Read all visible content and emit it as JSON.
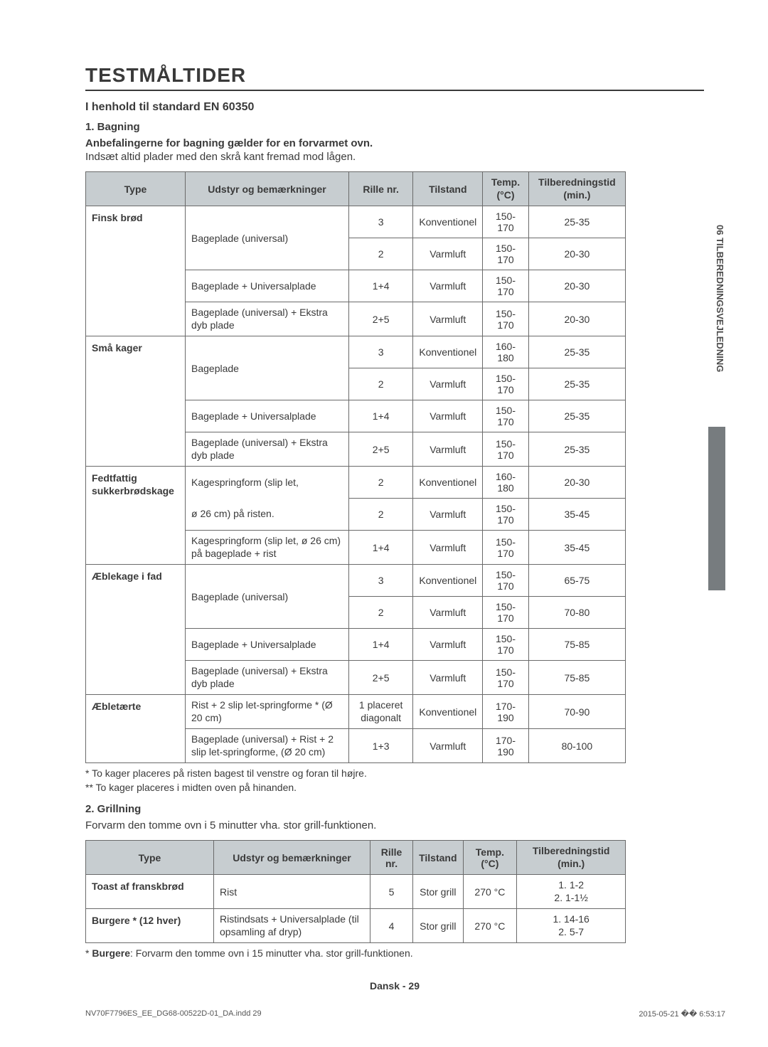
{
  "title": "TESTMÅLTIDER",
  "std_line": "I henhold til standard EN 60350",
  "s1_num": "1. Bagning",
  "s1_heading": "Anbefalingerne for bagning gælder for en forvarmet ovn.",
  "s1_body": "Indsæt altid plader med den skrå kant fremad mod lågen.",
  "t1_headers": {
    "c1": "Type",
    "c2": "Udstyr og bemærkninger",
    "c3": "Rille nr.",
    "c4": "Tilstand",
    "c5": "Temp. (°C)",
    "c6": "Tilberedningstid (min.)"
  },
  "t1": {
    "r1_type": "Finsk brød",
    "r1_equip": "Bageplade (universal)",
    "r1_shelf": "3",
    "r1_mode": "Konventionel",
    "r1_temp": "150-170",
    "r1_time": "25-35",
    "r2_shelf": "2",
    "r2_mode": "Varmluft",
    "r2_temp": "150-170",
    "r2_time": "20-30",
    "r3_equip": "Bageplade + Universalplade",
    "r3_shelf": "1+4",
    "r3_mode": "Varmluft",
    "r3_temp": "150-170",
    "r3_time": "20-30",
    "r4_equip": "Bageplade (universal) + Ekstra dyb plade",
    "r4_shelf": "2+5",
    "r4_mode": "Varmluft",
    "r4_temp": "150-170",
    "r4_time": "20-30",
    "r5_type": "Små kager",
    "r5_equip": "Bageplade",
    "r5_shelf": "3",
    "r5_mode": "Konventionel",
    "r5_temp": "160-180",
    "r5_time": "25-35",
    "r6_shelf": "2",
    "r6_mode": "Varmluft",
    "r6_temp": "150-170",
    "r6_time": "25-35",
    "r7_equip": "Bageplade + Universalplade",
    "r7_shelf": "1+4",
    "r7_mode": "Varmluft",
    "r7_temp": "150-170",
    "r7_time": "25-35",
    "r8_equip": "Bageplade (universal) + Ekstra dyb plade",
    "r8_shelf": "2+5",
    "r8_mode": "Varmluft",
    "r8_temp": "150-170",
    "r8_time": "25-35",
    "r9_type": "Fedtfattig sukkerbrødskage",
    "r9_equip1": "Kagespringform (slip let,",
    "r9_equip2": "ø 26 cm) på risten.",
    "r9_shelf": "2",
    "r9_mode": "Konventionel",
    "r9_temp": "160-180",
    "r9_time": "20-30",
    "r10_shelf": "2",
    "r10_mode": "Varmluft",
    "r10_temp": "150-170",
    "r10_time": "35-45",
    "r11_equip": "Kagespringform (slip let, ø 26 cm) på bageplade + rist",
    "r11_shelf": "1+4",
    "r11_mode": "Varmluft",
    "r11_temp": "150-170",
    "r11_time": "35-45",
    "r12_type": "Æblekage i fad",
    "r12_equip": "Bageplade (universal)",
    "r12_shelf": "3",
    "r12_mode": "Konventionel",
    "r12_temp": "150-170",
    "r12_time": "65-75",
    "r13_shelf": "2",
    "r13_mode": "Varmluft",
    "r13_temp": "150-170",
    "r13_time": "70-80",
    "r14_equip": "Bageplade + Universalplade",
    "r14_shelf": "1+4",
    "r14_mode": "Varmluft",
    "r14_temp": "150-170",
    "r14_time": "75-85",
    "r15_equip": "Bageplade (universal) + Ekstra dyb plade",
    "r15_shelf": "2+5",
    "r15_mode": "Varmluft",
    "r15_temp": "150-170",
    "r15_time": "75-85",
    "r16_type": "Æbletærte",
    "r16_equip": "Rist + 2 slip let-springforme * (Ø 20 cm)",
    "r16_shelf": "1 placeret diagonalt",
    "r16_mode": "Konventionel",
    "r16_temp": "170-190",
    "r16_time": "70-90",
    "r17_equip": "Bageplade (universal) + Rist + 2 slip let-springforme, (Ø 20 cm)",
    "r17_shelf": "1+3",
    "r17_mode": "Varmluft",
    "r17_temp": "170-190",
    "r17_time": "80-100"
  },
  "note1": "* To kager placeres på risten bagest til venstre og foran til højre.",
  "note2": "** To kager placeres i midten oven på hinanden.",
  "s2_num": "2. Grillning",
  "s2_body": "Forvarm den tomme ovn i 5 minutter vha. stor grill-funktionen.",
  "t2_headers": {
    "c1": "Type",
    "c2": "Udstyr og bemærkninger",
    "c3": "Rille nr.",
    "c4": "Tilstand",
    "c5": "Temp. (°C)",
    "c6": "Tilberedningstid (min.)"
  },
  "t2": {
    "r1_type": "Toast af franskbrød",
    "r1_equip": "Rist",
    "r1_shelf": "5",
    "r1_mode": "Stor grill",
    "r1_temp": "270 °C",
    "r1_time1": "1. 1-2",
    "r1_time2": "2. 1-1½",
    "r2_type": "Burgere * (12 hver)",
    "r2_equip": "Ristindsats + Universalplade (til opsamling af dryp)",
    "r2_shelf": "4",
    "r2_mode": "Stor grill",
    "r2_temp": "270 °C",
    "r2_time1": "1. 14-16",
    "r2_time2": "2. 5-7"
  },
  "burger_note_pre": "* ",
  "burger_note_bold": "Burgere",
  "burger_note_rest": ": Forvarm den tomme ovn i 15 minutter vha. stor grill-funktionen.",
  "page_center": "Dansk - 29",
  "side_tab": "06  TILBEREDNINGSVEJLEDNING",
  "footer_left": "NV70F7796ES_EE_DG68-00522D-01_DA.indd   29",
  "footer_right": "2015-05-21   �� 6:53:17"
}
